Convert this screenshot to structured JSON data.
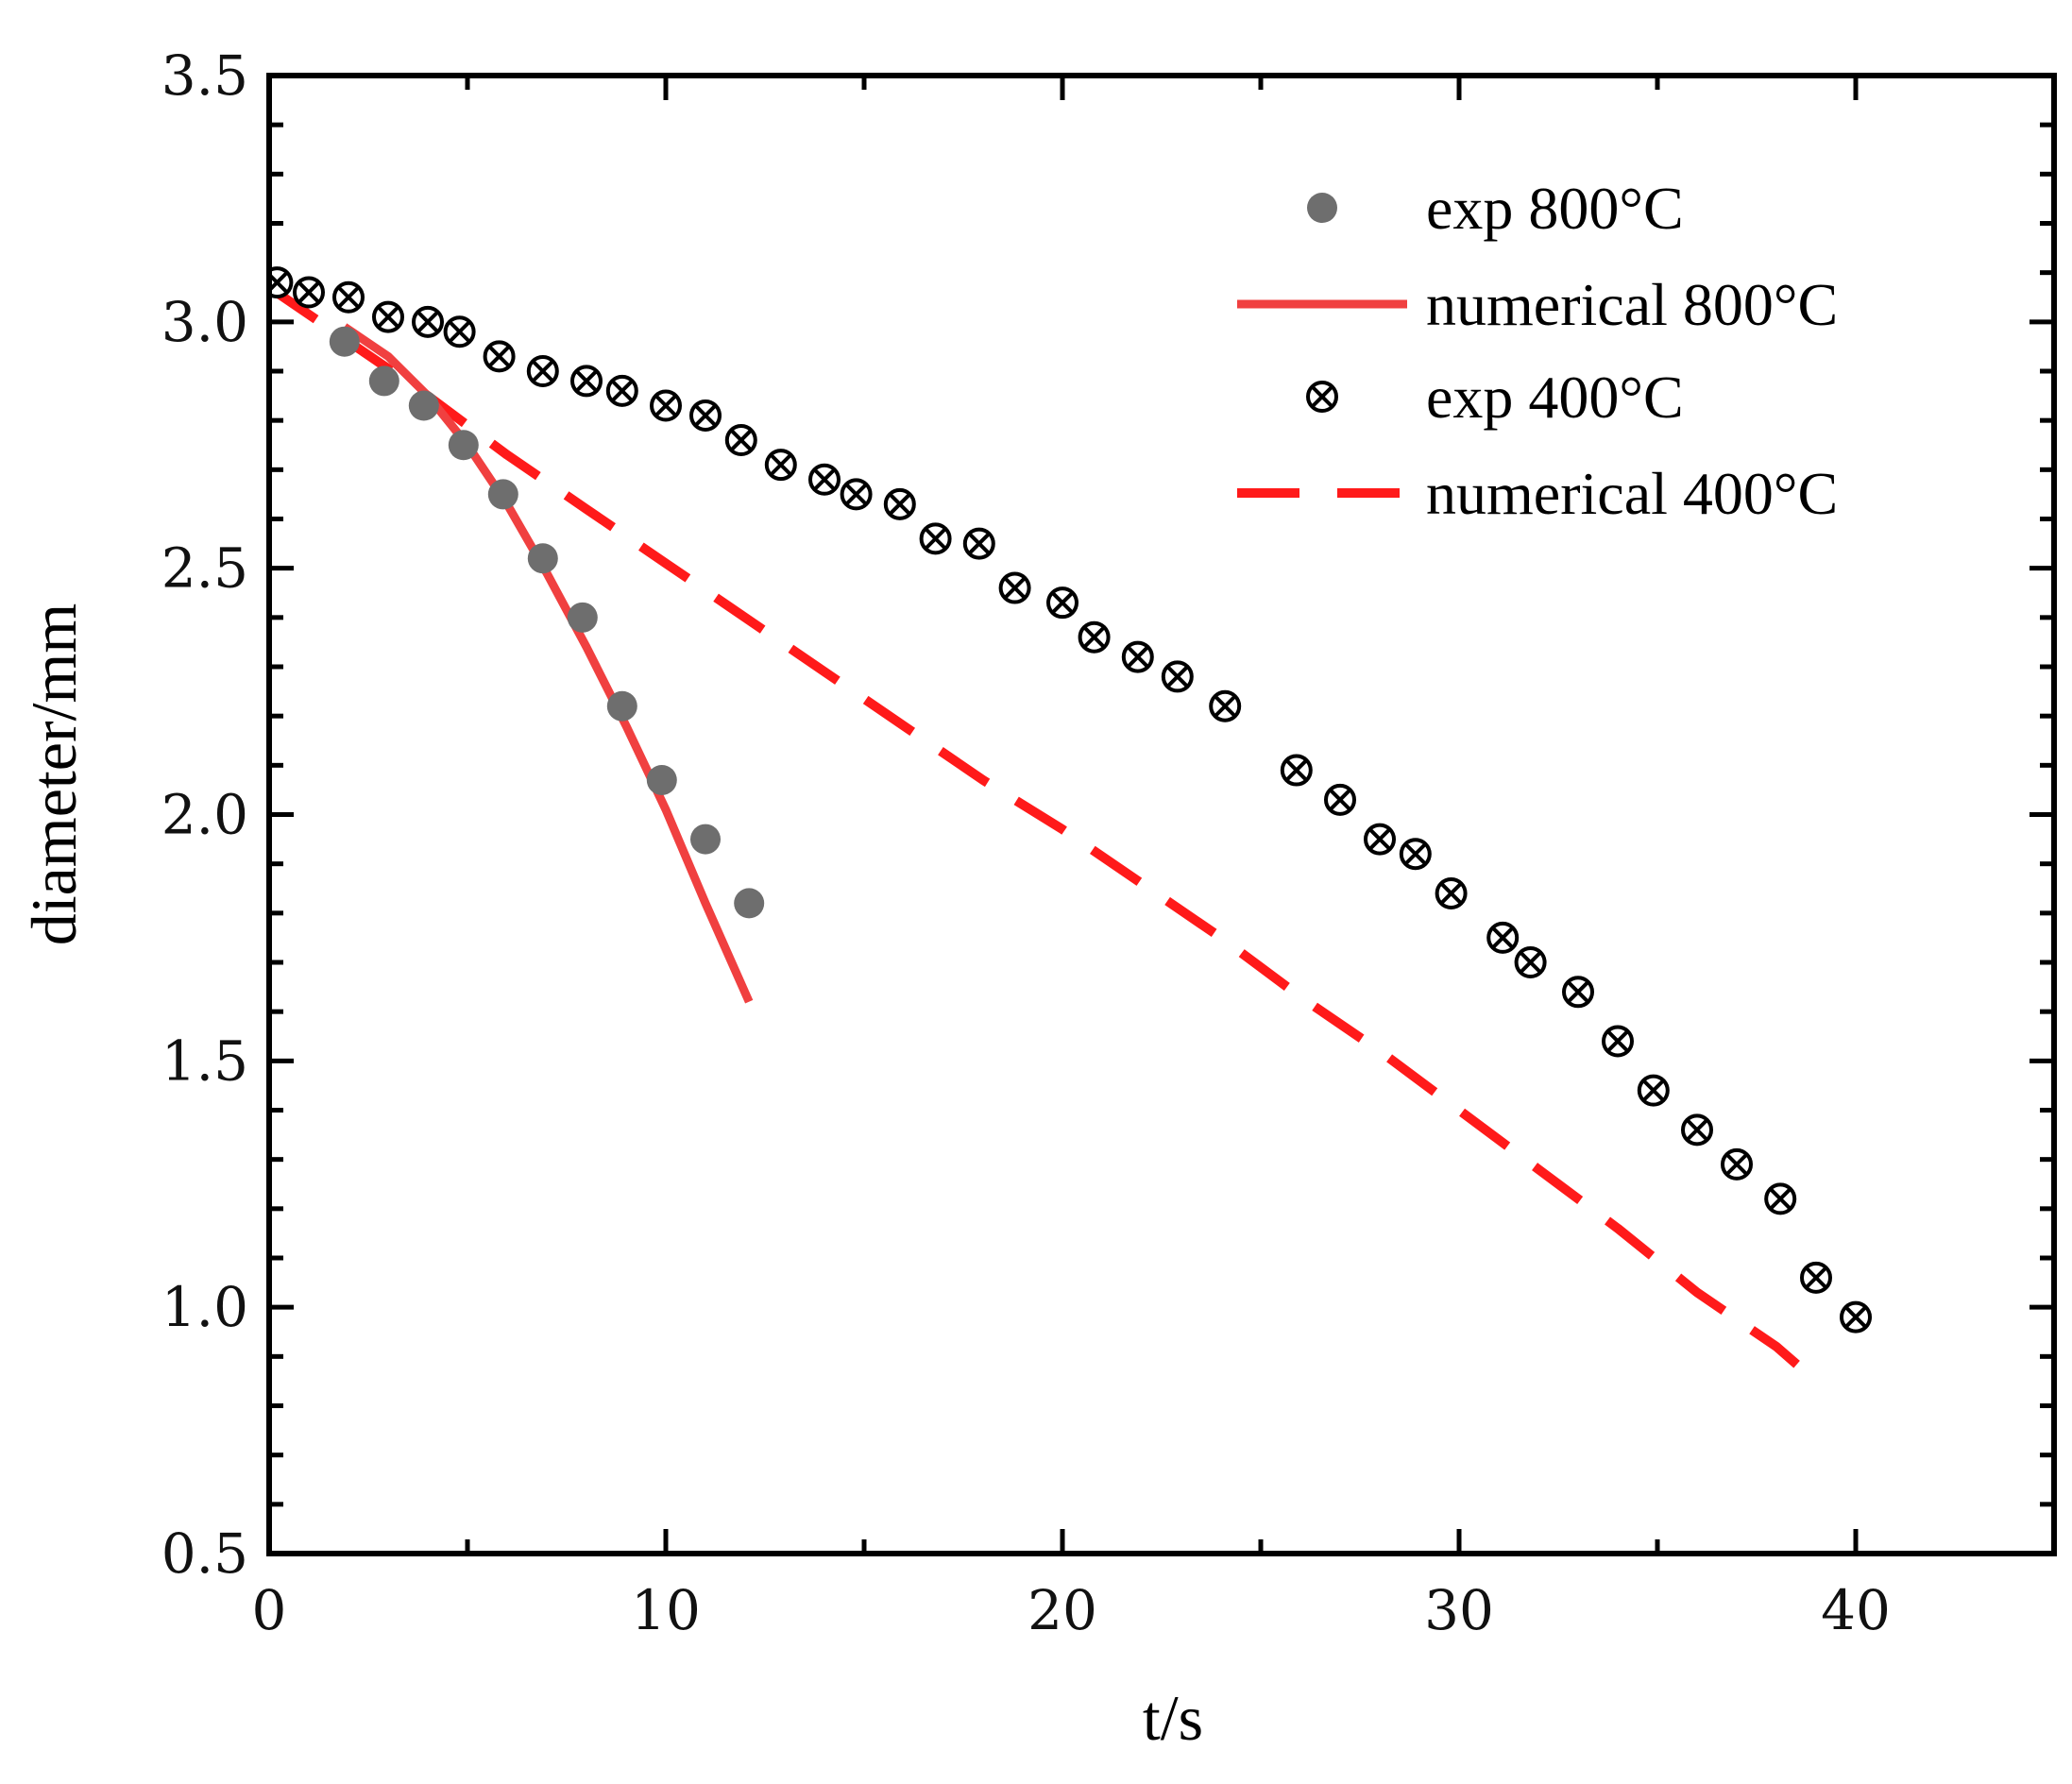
{
  "chart_data": {
    "type": "scatter",
    "title": "",
    "xlabel": "t/s",
    "ylabel": "diameter/mm",
    "xlim": [
      0,
      45
    ],
    "ylim": [
      0.5,
      3.5
    ],
    "xticks": [
      0,
      10,
      20,
      30,
      40
    ],
    "xtick_labels": [
      "0",
      "10",
      "20",
      "30",
      "40"
    ],
    "yticks": [
      0.5,
      1.0,
      1.5,
      2.0,
      2.5,
      3.0,
      3.5
    ],
    "ytick_labels": [
      "0.5",
      "1.0",
      "1.5",
      "2.0",
      "2.5",
      "3.0",
      "3.5"
    ],
    "grid": false,
    "legend_position": "top-right",
    "series": [
      {
        "name": "exp 800°C",
        "kind": "marker-filled-circle",
        "color": "#6e6e6e",
        "x": [
          1.9,
          2.9,
          3.9,
          4.9,
          5.9,
          6.9,
          7.9,
          8.9,
          9.9,
          11.0,
          12.1
        ],
        "y": [
          2.96,
          2.88,
          2.83,
          2.75,
          2.65,
          2.52,
          2.4,
          2.22,
          2.07,
          1.95,
          1.82
        ]
      },
      {
        "name": "numerical 800°C",
        "kind": "solid-line",
        "color": "#f04040",
        "x": [
          1.9,
          3.0,
          4.0,
          5.0,
          6.0,
          7.0,
          8.0,
          9.0,
          10.0,
          11.0,
          12.1
        ],
        "y": [
          2.99,
          2.93,
          2.85,
          2.75,
          2.63,
          2.49,
          2.34,
          2.18,
          2.01,
          1.82,
          1.62
        ]
      },
      {
        "name": "exp 400°C",
        "kind": "marker-circle-x",
        "color": "#000000",
        "x": [
          0.2,
          1.0,
          2.0,
          3.0,
          4.0,
          4.8,
          5.8,
          6.9,
          8.0,
          8.9,
          10.0,
          11.0,
          11.9,
          12.9,
          14.0,
          14.8,
          15.9,
          16.8,
          17.9,
          18.8,
          20.0,
          20.8,
          21.9,
          22.9,
          24.1,
          25.9,
          27.0,
          28.0,
          28.9,
          29.8,
          31.1,
          31.8,
          33.0,
          34.0,
          34.9,
          36.0,
          37.0,
          38.1,
          39.0,
          40.0
        ],
        "y": [
          3.08,
          3.06,
          3.05,
          3.01,
          3.0,
          2.98,
          2.93,
          2.9,
          2.88,
          2.86,
          2.83,
          2.81,
          2.76,
          2.71,
          2.68,
          2.65,
          2.63,
          2.56,
          2.55,
          2.46,
          2.43,
          2.36,
          2.32,
          2.28,
          2.22,
          2.09,
          2.03,
          1.95,
          1.92,
          1.84,
          1.75,
          1.7,
          1.64,
          1.54,
          1.44,
          1.36,
          1.29,
          1.22,
          1.06,
          0.98
        ]
      },
      {
        "name": "numerical 400°C",
        "kind": "dashed-line",
        "color": "#ff1a1a",
        "x": [
          0,
          2,
          4,
          6,
          8,
          10,
          12,
          14,
          16,
          18,
          20,
          22,
          24,
          26,
          28,
          30,
          32,
          34,
          36,
          38,
          39
        ],
        "y": [
          3.07,
          2.96,
          2.85,
          2.73,
          2.62,
          2.51,
          2.4,
          2.29,
          2.18,
          2.07,
          1.97,
          1.86,
          1.75,
          1.63,
          1.52,
          1.4,
          1.28,
          1.16,
          1.03,
          0.92,
          0.85
        ]
      }
    ]
  }
}
